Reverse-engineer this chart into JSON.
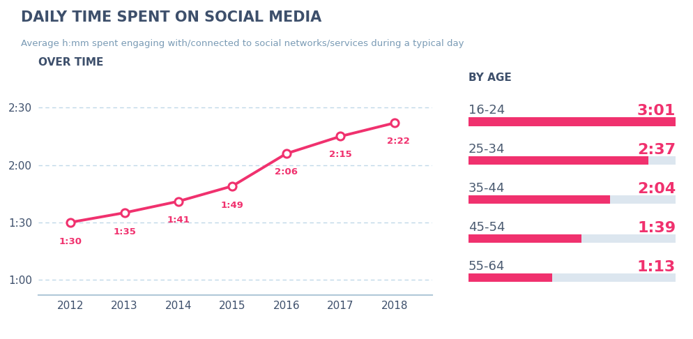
{
  "title": "DAILY TIME SPENT ON SOCIAL MEDIA",
  "subtitle": "Average h:mm spent engaging with/connected to social networks/services during a typical day",
  "title_color": "#3d4f6b",
  "subtitle_color": "#7a9bb5",
  "background_color": "#ffffff",
  "left_section_title": "OVER TIME",
  "right_section_title": "BY AGE",
  "years": [
    2012,
    2013,
    2014,
    2015,
    2016,
    2017,
    2018
  ],
  "values_minutes": [
    90,
    95,
    101,
    109,
    126,
    135,
    142
  ],
  "labels": [
    "1:30",
    "1:35",
    "1:41",
    "1:49",
    "2:06",
    "2:15",
    "2:22"
  ],
  "line_color": "#f0316e",
  "marker_color": "#f0316e",
  "marker_face": "#ffffff",
  "marker_size": 8,
  "line_width": 2.8,
  "yticks_minutes": [
    60,
    90,
    120,
    150
  ],
  "ytick_labels": [
    "1:00",
    "1:30",
    "2:00",
    "2:30"
  ],
  "ylim": [
    52,
    162
  ],
  "grid_color": "#c0d8e8",
  "axis_color": "#b0c8d8",
  "age_groups": [
    "16-24",
    "25-34",
    "35-44",
    "45-54",
    "55-64"
  ],
  "age_values_minutes": [
    181,
    157,
    124,
    99,
    73
  ],
  "age_labels": [
    "3:01",
    "2:37",
    "2:04",
    "1:39",
    "1:13"
  ],
  "age_max_minutes": 181,
  "bar_color": "#f0316e",
  "bar_bg_color": "#dce6ef",
  "bar_thickness": 0.18,
  "section_title_color": "#3d4f6b",
  "age_label_color": "#4a5a70",
  "value_label_color": "#f0316e",
  "data_label_color": "#f0316e",
  "label_fontsize": 9.5,
  "tick_fontsize": 11,
  "section_title_fontsize": 11,
  "age_fontsize": 13,
  "age_value_fontsize": 16
}
